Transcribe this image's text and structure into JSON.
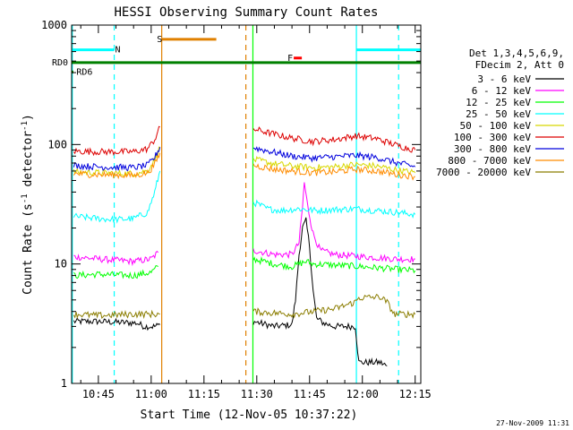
{
  "chart_data": {
    "type": "line",
    "title": "HESSI Observing Summary Count Rates",
    "xlabel": "Start Time (12-Nov-05 10:37:22)",
    "ylabel_main": "Count Rate (s",
    "ylabel_sup1": "-1",
    "ylabel_mid": " detector",
    "ylabel_sup2": "-1",
    "ylabel_end": ")",
    "y_scale": "log",
    "ylim": [
      1,
      1000
    ],
    "xlim_minutes": [
      37.4,
      136.6
    ],
    "x_ticks": [
      {
        "minute": 45,
        "label": "10:45"
      },
      {
        "minute": 60,
        "label": "11:00"
      },
      {
        "minute": 75,
        "label": "11:15"
      },
      {
        "minute": 90,
        "label": "11:30"
      },
      {
        "minute": 105,
        "label": "11:45"
      },
      {
        "minute": 120,
        "label": "12:00"
      },
      {
        "minute": 135,
        "label": "12:15"
      }
    ],
    "y_ticks": [
      {
        "value": 1,
        "label": "1"
      },
      {
        "value": 10,
        "label": "10"
      },
      {
        "value": 100,
        "label": "100"
      },
      {
        "value": 1000,
        "label": "1000"
      }
    ],
    "legend_header": [
      "Det 1,3,4,5,6,9,",
      "FDecim 2, Att 0"
    ],
    "legend_position": "right",
    "series": [
      {
        "name": "3 - 6 keV",
        "color": "#000000",
        "segments": [
          [
            [
              38,
              3.3
            ],
            [
              45,
              3.3
            ],
            [
              56,
              3.2
            ],
            [
              58,
              3.0
            ],
            [
              61,
              3.0
            ],
            [
              62.5,
              3.1
            ]
          ],
          [
            [
              89,
              3.3
            ],
            [
              95,
              3.0
            ],
            [
              100,
              3.1
            ],
            [
              101,
              5
            ],
            [
              102,
              12
            ],
            [
              103,
              20
            ],
            [
              104,
              23
            ],
            [
              105,
              14
            ],
            [
              106,
              6
            ],
            [
              107,
              3.5
            ],
            [
              109,
              3.2
            ],
            [
              112,
              3.0
            ],
            [
              118,
              3.0
            ],
            [
              119,
              1.5
            ],
            [
              125,
              1.5
            ],
            [
              127,
              1.4
            ]
          ]
        ]
      },
      {
        "name": "6 - 12 keV",
        "color": "#ff00ff",
        "segments": [
          [
            [
              38,
              11.5
            ],
            [
              45,
              11
            ],
            [
              55,
              10.5
            ],
            [
              60,
              11
            ],
            [
              62,
              12.5
            ]
          ],
          [
            [
              89,
              13
            ],
            [
              95,
              12
            ],
            [
              100,
              12
            ],
            [
              102,
              15
            ],
            [
              103,
              30
            ],
            [
              103.5,
              48
            ],
            [
              104.5,
              30
            ],
            [
              106,
              18
            ],
            [
              108,
              13
            ],
            [
              112,
              12
            ],
            [
              120,
              11.5
            ],
            [
              130,
              11
            ],
            [
              135,
              11
            ]
          ]
        ]
      },
      {
        "name": "12 - 25 keV",
        "color": "#00ff00",
        "segments": [
          [
            [
              38,
              8
            ],
            [
              45,
              8.2
            ],
            [
              55,
              8
            ],
            [
              60,
              8.5
            ],
            [
              62,
              9.5
            ]
          ],
          [
            [
              89,
              11
            ],
            [
              95,
              10
            ],
            [
              100,
              9.5
            ],
            [
              104,
              10.5
            ],
            [
              106,
              10
            ],
            [
              112,
              9.8
            ],
            [
              120,
              9.5
            ],
            [
              130,
              9
            ],
            [
              135,
              8.8
            ]
          ]
        ]
      },
      {
        "name": "25 - 50 keV",
        "color": "#00ffff",
        "segments": [
          [
            [
              38,
              25
            ],
            [
              45,
              24
            ],
            [
              50,
              23.5
            ],
            [
              55,
              24
            ],
            [
              59,
              27
            ],
            [
              61,
              40
            ],
            [
              62.5,
              60
            ]
          ],
          [
            [
              89,
              33
            ],
            [
              93,
              29
            ],
            [
              97,
              28
            ],
            [
              102,
              29
            ],
            [
              107,
              28
            ],
            [
              112,
              28.5
            ],
            [
              118,
              29
            ],
            [
              124,
              28
            ],
            [
              130,
              27
            ],
            [
              135,
              26
            ]
          ]
        ]
      },
      {
        "name": "50 - 100 keV",
        "color": "#d8d800",
        "segments": [
          [
            [
              38,
              59
            ],
            [
              45,
              58
            ],
            [
              55,
              57
            ],
            [
              59,
              60
            ],
            [
              61,
              75
            ],
            [
              62.5,
              95
            ]
          ],
          [
            [
              89,
              75
            ],
            [
              95,
              69
            ],
            [
              100,
              66
            ],
            [
              106,
              64
            ],
            [
              112,
              65
            ],
            [
              118,
              68
            ],
            [
              124,
              66
            ],
            [
              130,
              61
            ],
            [
              135,
              58
            ]
          ]
        ]
      },
      {
        "name": "100 - 300 keV",
        "color": "#dd0000",
        "segments": [
          [
            [
              38,
              88
            ],
            [
              45,
              87
            ],
            [
              55,
              87
            ],
            [
              59,
              92
            ],
            [
              61,
              110
            ],
            [
              62.5,
              140
            ]
          ],
          [
            [
              89,
              135
            ],
            [
              95,
              122
            ],
            [
              100,
              113
            ],
            [
              106,
              106
            ],
            [
              112,
              110
            ],
            [
              118,
              118
            ],
            [
              124,
              112
            ],
            [
              130,
              98
            ],
            [
              135,
              90
            ]
          ]
        ]
      },
      {
        "name": "300 - 800 keV",
        "color": "#0000dd",
        "segments": [
          [
            [
              38,
              67
            ],
            [
              45,
              65
            ],
            [
              55,
              64
            ],
            [
              59,
              67
            ],
            [
              61,
              78
            ],
            [
              62.5,
              95
            ]
          ],
          [
            [
              89,
              94
            ],
            [
              95,
              86
            ],
            [
              100,
              80
            ],
            [
              106,
              77
            ],
            [
              112,
              79
            ],
            [
              118,
              81
            ],
            [
              124,
              78
            ],
            [
              130,
              70
            ],
            [
              135,
              65
            ]
          ]
        ]
      },
      {
        "name": "800 - 7000 keV",
        "color": "#ff8c00",
        "segments": [
          [
            [
              38,
              57
            ],
            [
              45,
              56
            ],
            [
              55,
              55
            ],
            [
              59,
              58
            ],
            [
              61,
              68
            ],
            [
              62.5,
              85
            ]
          ],
          [
            [
              89,
              67
            ],
            [
              95,
              62
            ],
            [
              100,
              60
            ],
            [
              106,
              58
            ],
            [
              112,
              59
            ],
            [
              118,
              62
            ],
            [
              124,
              60
            ],
            [
              130,
              56
            ],
            [
              135,
              54
            ]
          ]
        ]
      },
      {
        "name": "7000 - 20000 keV",
        "color": "#8b7d00",
        "segments": [
          [
            [
              38,
              3.8
            ],
            [
              45,
              3.7
            ],
            [
              55,
              3.8
            ],
            [
              62.5,
              3.8
            ]
          ],
          [
            [
              89,
              4.0
            ],
            [
              100,
              3.8
            ],
            [
              112,
              4.2
            ],
            [
              118,
              4.8
            ],
            [
              119,
              5.2
            ],
            [
              125,
              5.3
            ],
            [
              127,
              4.8
            ],
            [
              129,
              3.8
            ],
            [
              135,
              3.8
            ]
          ]
        ]
      }
    ],
    "vertical_lines": [
      {
        "minute": 37.6,
        "color": "#00ffff",
        "style": "solid"
      },
      {
        "minute": 49.5,
        "color": "#00ffff",
        "style": "dashed"
      },
      {
        "minute": 63.0,
        "color": "#e08000",
        "style": "solid"
      },
      {
        "minute": 86.9,
        "color": "#e08000",
        "style": "dashed"
      },
      {
        "minute": 88.9,
        "color": "#00ff00",
        "style": "solid"
      },
      {
        "minute": 118.3,
        "color": "#00ffff",
        "style": "solid"
      },
      {
        "minute": 130.3,
        "color": "#00ffff",
        "style": "dashed"
      }
    ],
    "flag_bars": [
      {
        "label": "N",
        "color": "#00ffff",
        "label_minute": 50.5,
        "label_position": "left",
        "level": 620,
        "ranges": [
          [
            37.6,
            49.5
          ],
          [
            118.3,
            136.6
          ]
        ]
      },
      {
        "label": "S",
        "color": "#e08000",
        "label_minute": 62.4,
        "label_position": "left",
        "level": 760,
        "ranges": [
          [
            63.0,
            78.5
          ]
        ]
      },
      {
        "label": "F",
        "color": "#ff0000",
        "label_minute": 99.5,
        "label_position": "left",
        "level": 530,
        "ranges": [
          [
            100.5,
            102.8
          ]
        ]
      },
      {
        "label": "RD0",
        "color": "#008000",
        "label_position": "outside-left",
        "level": 485,
        "ranges": [
          [
            37.4,
            136.6
          ]
        ]
      },
      {
        "label": "RD6",
        "color": "#008000",
        "label_minute": 38.5,
        "label_position": "right",
        "level": 405,
        "ranges": [
          [
            37.4,
            37.9
          ]
        ]
      }
    ]
  },
  "footer": {
    "timestamp": "27-Nov-2009 11:31"
  }
}
